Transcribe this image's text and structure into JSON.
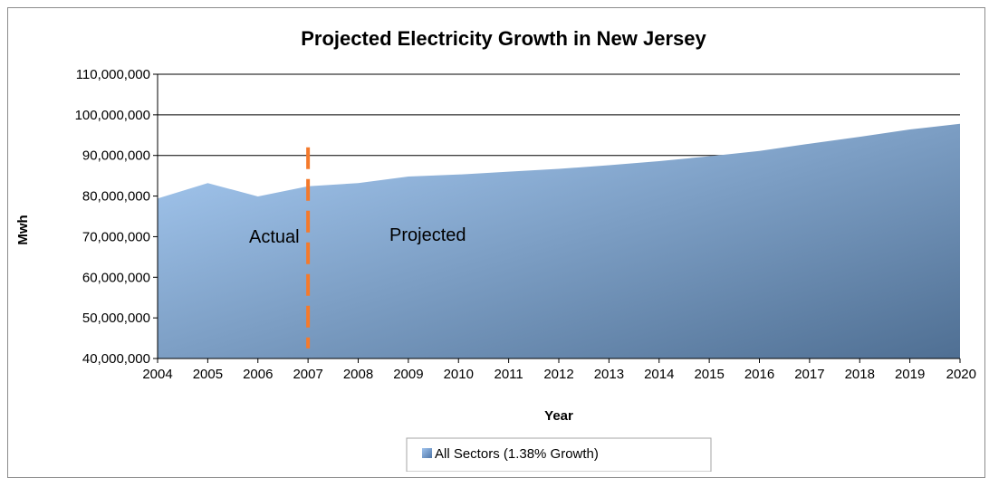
{
  "chart_data": {
    "type": "area",
    "title": "Projected Electricity Growth in New Jersey",
    "xlabel": "Year",
    "ylabel": "Mwh",
    "x": [
      2004,
      2005,
      2006,
      2007,
      2008,
      2009,
      2010,
      2011,
      2012,
      2013,
      2014,
      2015,
      2016,
      2017,
      2018,
      2019,
      2020
    ],
    "series": [
      {
        "name": "All Sectors (1.38% Growth)",
        "values": [
          79400000,
          83200000,
          79900000,
          82400000,
          83200000,
          84800000,
          85300000,
          86000000,
          86700000,
          87600000,
          88600000,
          89800000,
          91100000,
          92900000,
          94600000,
          96400000,
          97800000
        ]
      }
    ],
    "ylim": [
      40000000,
      110000000
    ],
    "yticks": [
      40000000,
      50000000,
      60000000,
      70000000,
      80000000,
      90000000,
      100000000,
      110000000
    ],
    "ytick_labels": [
      "40,000,000",
      "50,000,000",
      "60,000,000",
      "70,000,000",
      "80,000,000",
      "90,000,000",
      "100,000,000",
      "110,000,000"
    ],
    "gridlines": [
      90000000,
      100000000,
      110000000
    ],
    "annotations": {
      "actual_label": "Actual",
      "projected_label": "Projected",
      "divider_year": 2007
    },
    "legend_placement": "bottom-center",
    "colors": {
      "area_light": "#a9cdf5",
      "area_dark": "#4f6f93",
      "divider": "#f47a2c",
      "grid": "#000000",
      "legend_swatch": "#6f9ad0"
    }
  }
}
